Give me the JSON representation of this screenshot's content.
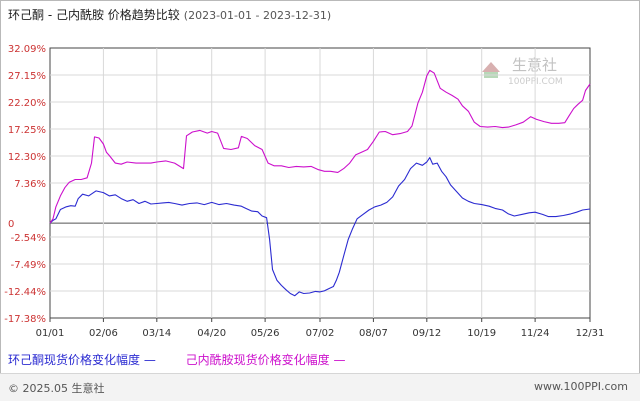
{
  "header": {
    "title": "环己酮 - 己内酰胺 价格趋势比较",
    "date_range": "(2023-01-01 - 2023-12-31)"
  },
  "watermark": {
    "text": "生意社",
    "sub": "100PPI.COM"
  },
  "footer": {
    "copyright": "© 2025.05 生意社",
    "website": "www.100PPI.com"
  },
  "colors": {
    "series1": "#2b2bd1",
    "series2": "#cc10cc",
    "grid": "#d8d8d8",
    "axis": "#444444"
  },
  "chart_data": {
    "type": "line",
    "title": "环己酮 - 己内酰胺 价格趋势比较",
    "xlabel": "",
    "ylabel": "",
    "x_ticks": [
      "01/01",
      "02/06",
      "03/14",
      "04/20",
      "05/26",
      "07/02",
      "08/07",
      "09/12",
      "10/19",
      "11/24",
      "12/31"
    ],
    "y_ticks": [
      "32.09%",
      "27.15%",
      "22.20%",
      "17.25%",
      "12.30%",
      "7.36%",
      "0",
      "-2.54%",
      "-7.49%",
      "-12.44%",
      "-17.38%"
    ],
    "ylim": [
      -17.38,
      32.09
    ],
    "grid": true,
    "series": [
      {
        "name": "环己酮现货价格变化幅度",
        "color": "#2b2bd1",
        "points": [
          [
            "01/01",
            0
          ],
          [
            "01/03",
            0.5
          ],
          [
            "01/05",
            0.8
          ],
          [
            "01/08",
            2.5
          ],
          [
            "01/12",
            3.0
          ],
          [
            "01/15",
            3.2
          ],
          [
            "01/18",
            3.1
          ],
          [
            "01/20",
            4.5
          ],
          [
            "01/23",
            5.3
          ],
          [
            "01/27",
            5.0
          ],
          [
            "02/01",
            5.9
          ],
          [
            "02/06",
            5.6
          ],
          [
            "02/10",
            5.0
          ],
          [
            "02/14",
            5.2
          ],
          [
            "02/18",
            4.5
          ],
          [
            "02/22",
            4.0
          ],
          [
            "02/26",
            4.3
          ],
          [
            "03/02",
            3.6
          ],
          [
            "03/06",
            4.0
          ],
          [
            "03/10",
            3.5
          ],
          [
            "03/14",
            3.6
          ],
          [
            "03/18",
            3.7
          ],
          [
            "03/22",
            3.8
          ],
          [
            "03/26",
            3.6
          ],
          [
            "03/31",
            3.3
          ],
          [
            "04/05",
            3.6
          ],
          [
            "04/10",
            3.7
          ],
          [
            "04/15",
            3.4
          ],
          [
            "04/20",
            3.8
          ],
          [
            "04/25",
            3.4
          ],
          [
            "04/30",
            3.6
          ],
          [
            "05/05",
            3.3
          ],
          [
            "05/10",
            3.1
          ],
          [
            "05/13",
            2.7
          ],
          [
            "05/17",
            2.2
          ],
          [
            "05/21",
            2.1
          ],
          [
            "05/24",
            1.3
          ],
          [
            "05/27",
            1.0
          ],
          [
            "05/29",
            -3.0
          ],
          [
            "05/31",
            -8.5
          ],
          [
            "06/03",
            -10.5
          ],
          [
            "06/06",
            -11.4
          ],
          [
            "06/09",
            -12.2
          ],
          [
            "06/12",
            -12.9
          ],
          [
            "06/15",
            -13.3
          ],
          [
            "06/18",
            -12.6
          ],
          [
            "06/21",
            -12.9
          ],
          [
            "06/25",
            -12.8
          ],
          [
            "06/29",
            -12.5
          ],
          [
            "07/02",
            -12.6
          ],
          [
            "07/05",
            -12.4
          ],
          [
            "07/08",
            -12.0
          ],
          [
            "07/11",
            -11.6
          ],
          [
            "07/13",
            -10.5
          ],
          [
            "07/15",
            -9.0
          ],
          [
            "07/18",
            -6.0
          ],
          [
            "07/21",
            -3.0
          ],
          [
            "07/24",
            -1.0
          ],
          [
            "07/27",
            0.8
          ],
          [
            "07/31",
            1.6
          ],
          [
            "08/04",
            2.4
          ],
          [
            "08/08",
            3.0
          ],
          [
            "08/12",
            3.3
          ],
          [
            "08/16",
            3.8
          ],
          [
            "08/20",
            4.8
          ],
          [
            "08/24",
            6.8
          ],
          [
            "08/28",
            8.0
          ],
          [
            "09/01",
            10.0
          ],
          [
            "09/05",
            11.0
          ],
          [
            "09/09",
            10.6
          ],
          [
            "09/12",
            11.2
          ],
          [
            "09/14",
            12.0
          ],
          [
            "09/16",
            10.8
          ],
          [
            "09/19",
            11.0
          ],
          [
            "09/22",
            9.5
          ],
          [
            "09/25",
            8.5
          ],
          [
            "09/28",
            7.0
          ],
          [
            "10/02",
            5.8
          ],
          [
            "10/06",
            4.6
          ],
          [
            "10/10",
            4.0
          ],
          [
            "10/14",
            3.6
          ],
          [
            "10/19",
            3.4
          ],
          [
            "10/24",
            3.1
          ],
          [
            "10/28",
            2.7
          ],
          [
            "11/02",
            2.4
          ],
          [
            "11/06",
            1.7
          ],
          [
            "11/10",
            1.3
          ],
          [
            "11/15",
            1.6
          ],
          [
            "11/20",
            1.9
          ],
          [
            "11/24",
            2.0
          ],
          [
            "11/29",
            1.6
          ],
          [
            "12/03",
            1.2
          ],
          [
            "12/08",
            1.2
          ],
          [
            "12/13",
            1.4
          ],
          [
            "12/18",
            1.7
          ],
          [
            "12/22",
            2.0
          ],
          [
            "12/26",
            2.4
          ],
          [
            "12/31",
            2.6
          ]
        ]
      },
      {
        "name": "己内酰胺现货价格变化幅度",
        "color": "#cc10cc",
        "points": [
          [
            "01/01",
            0
          ],
          [
            "01/03",
            0.8
          ],
          [
            "01/05",
            3.0
          ],
          [
            "01/08",
            5.0
          ],
          [
            "01/11",
            6.5
          ],
          [
            "01/14",
            7.5
          ],
          [
            "01/18",
            8.0
          ],
          [
            "01/22",
            8.0
          ],
          [
            "01/26",
            8.3
          ],
          [
            "01/29",
            11.0
          ],
          [
            "01/31",
            15.8
          ],
          [
            "02/03",
            15.6
          ],
          [
            "02/06",
            14.5
          ],
          [
            "02/08",
            13.0
          ],
          [
            "02/10",
            12.4
          ],
          [
            "02/14",
            11.0
          ],
          [
            "02/18",
            10.8
          ],
          [
            "02/22",
            11.2
          ],
          [
            "02/28",
            11.0
          ],
          [
            "03/05",
            11.0
          ],
          [
            "03/10",
            11.0
          ],
          [
            "03/14",
            11.2
          ],
          [
            "03/20",
            11.4
          ],
          [
            "03/26",
            11.0
          ],
          [
            "04/01",
            10.0
          ],
          [
            "04/03",
            16.0
          ],
          [
            "04/07",
            16.7
          ],
          [
            "04/12",
            17.0
          ],
          [
            "04/17",
            16.5
          ],
          [
            "04/20",
            16.8
          ],
          [
            "04/24",
            16.5
          ],
          [
            "04/28",
            13.7
          ],
          [
            "05/03",
            13.5
          ],
          [
            "05/08",
            13.8
          ],
          [
            "05/10",
            15.9
          ],
          [
            "05/14",
            15.5
          ],
          [
            "05/19",
            14.2
          ],
          [
            "05/24",
            13.5
          ],
          [
            "05/28",
            11.0
          ],
          [
            "06/01",
            10.5
          ],
          [
            "06/06",
            10.5
          ],
          [
            "06/11",
            10.2
          ],
          [
            "06/16",
            10.4
          ],
          [
            "06/21",
            10.3
          ],
          [
            "06/26",
            10.4
          ],
          [
            "07/01",
            9.8
          ],
          [
            "07/05",
            9.5
          ],
          [
            "07/09",
            9.5
          ],
          [
            "07/14",
            9.3
          ],
          [
            "07/18",
            10.0
          ],
          [
            "07/22",
            11.0
          ],
          [
            "07/26",
            12.5
          ],
          [
            "07/30",
            13.0
          ],
          [
            "08/03",
            13.5
          ],
          [
            "08/07",
            15.0
          ],
          [
            "08/11",
            16.7
          ],
          [
            "08/15",
            16.8
          ],
          [
            "08/20",
            16.2
          ],
          [
            "08/25",
            16.4
          ],
          [
            "08/30",
            16.8
          ],
          [
            "09/02",
            17.8
          ],
          [
            "09/06",
            22.0
          ],
          [
            "09/09",
            24.0
          ],
          [
            "09/12",
            27.0
          ],
          [
            "09/14",
            28.0
          ],
          [
            "09/17",
            27.5
          ],
          [
            "09/21",
            24.7
          ],
          [
            "09/25",
            24.0
          ],
          [
            "09/29",
            23.4
          ],
          [
            "10/03",
            22.7
          ],
          [
            "10/06",
            21.5
          ],
          [
            "10/10",
            20.5
          ],
          [
            "10/14",
            18.5
          ],
          [
            "10/18",
            17.7
          ],
          [
            "10/23",
            17.6
          ],
          [
            "10/28",
            17.7
          ],
          [
            "11/02",
            17.5
          ],
          [
            "11/06",
            17.6
          ],
          [
            "11/11",
            18.0
          ],
          [
            "11/16",
            18.5
          ],
          [
            "11/21",
            19.5
          ],
          [
            "11/25",
            19.0
          ],
          [
            "11/30",
            18.6
          ],
          [
            "12/05",
            18.3
          ],
          [
            "12/10",
            18.3
          ],
          [
            "12/14",
            18.4
          ],
          [
            "12/17",
            19.7
          ],
          [
            "12/20",
            21.0
          ],
          [
            "12/23",
            21.8
          ],
          [
            "12/26",
            22.5
          ],
          [
            "12/28",
            24.3
          ],
          [
            "12/31",
            25.5
          ]
        ]
      }
    ]
  }
}
